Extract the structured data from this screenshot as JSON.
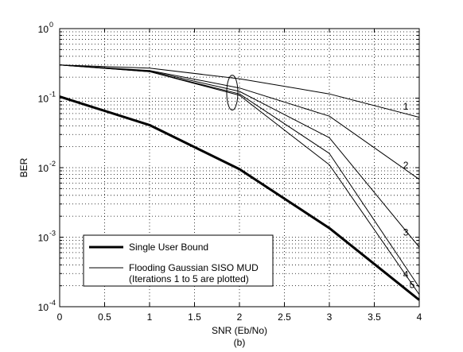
{
  "chart_data": {
    "type": "line",
    "caption": "(b)",
    "xlabel": "SNR (Eb/No)",
    "ylabel": "BER",
    "xlim": [
      0,
      4
    ],
    "ylim": [
      0.0001,
      1
    ],
    "yscale": "log",
    "grid": true,
    "xticks": [
      "0",
      "0.5",
      "1",
      "1.5",
      "2",
      "2.5",
      "3",
      "3.5",
      "4"
    ],
    "yticks": [
      {
        "base": "10",
        "exp": "-4"
      },
      {
        "base": "10",
        "exp": "-3"
      },
      {
        "base": "10",
        "exp": "-2"
      },
      {
        "base": "10",
        "exp": "-1"
      },
      {
        "base": "10",
        "exp": "0"
      }
    ],
    "legend": {
      "placement": "lower-left",
      "entries": [
        {
          "label": "Single User Bound",
          "line": "thick"
        },
        {
          "label": "Flooding Gaussian SISO MUD",
          "line": "thin",
          "sublabel": "(Iterations 1 to 5 are plotted)"
        }
      ]
    },
    "series": [
      {
        "name": "Single User Bound",
        "style": "thick",
        "x": [
          0,
          1,
          2,
          3,
          4
        ],
        "y": [
          0.105,
          0.041,
          0.0095,
          0.00135,
          0.000125
        ]
      },
      {
        "iteration": "1",
        "style": "thin",
        "x": [
          0,
          1,
          2,
          3,
          4
        ],
        "y": [
          0.3,
          0.27,
          0.19,
          0.115,
          0.053
        ]
      },
      {
        "iteration": "2",
        "style": "thin",
        "x": [
          0,
          1,
          2,
          3,
          4
        ],
        "y": [
          0.3,
          0.25,
          0.14,
          0.055,
          0.0068
        ]
      },
      {
        "iteration": "3",
        "style": "thin",
        "x": [
          0,
          1,
          2,
          3,
          4
        ],
        "y": [
          0.3,
          0.245,
          0.125,
          0.027,
          0.00072
        ]
      },
      {
        "iteration": "4",
        "style": "thin",
        "x": [
          0,
          1,
          2,
          3,
          4
        ],
        "y": [
          0.3,
          0.24,
          0.115,
          0.016,
          0.00019
        ]
      },
      {
        "iteration": "5",
        "style": "thin",
        "x": [
          0,
          1,
          2,
          3,
          4
        ],
        "y": [
          0.3,
          0.24,
          0.11,
          0.011,
          0.00015
        ]
      }
    ],
    "annotations": [
      {
        "text": "1",
        "x": 3.85,
        "y": 0.068
      },
      {
        "text": "2",
        "x": 3.85,
        "y": 0.0098
      },
      {
        "text": "3",
        "x": 3.85,
        "y": 0.00105
      },
      {
        "text": "4",
        "x": 3.85,
        "y": 0.00026
      },
      {
        "text": "5",
        "x": 3.92,
        "y": 0.000185
      }
    ],
    "ellipse_marker": {
      "x": 1.92,
      "y": 0.12
    }
  }
}
